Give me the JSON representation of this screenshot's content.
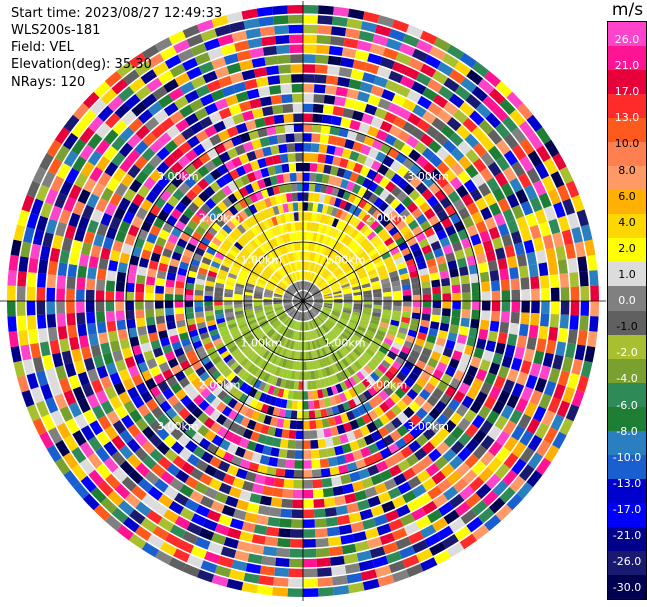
{
  "header": {
    "start_time": "Start time: 2023/08/27 12:49:33",
    "instrument": "WLS200s-181",
    "field": "Field: VEL",
    "elevation": "Elevation(deg): 35.30",
    "nrays": "NRays: 120"
  },
  "colorbar": {
    "unit": "m/s",
    "ticks": [
      "26.0",
      "21.0",
      "17.0",
      "13.0",
      "10.0",
      "8.0",
      "6.0",
      "4.0",
      "2.0",
      "1.0",
      "0.0",
      "-1.0",
      "-2.0",
      "-4.0",
      "-6.0",
      "-8.0",
      "-10.0",
      "-13.0",
      "-17.0",
      "-21.0",
      "-26.0",
      "-30.0"
    ],
    "colors": [
      "#ff44cc",
      "#ff1493",
      "#e8003a",
      "#ff2a2a",
      "#ff5a1e",
      "#ff7f50",
      "#ff9a66",
      "#ffb000",
      "#ffd700",
      "#ffff00",
      "#dcdcdc",
      "#808080",
      "#606060",
      "#a8c030",
      "#7aa030",
      "#2e8b57",
      "#1e7e34",
      "#2a7fc0",
      "#1a5fd0",
      "#0000cd",
      "#0000ff",
      "#00008b",
      "#191970",
      "#000050"
    ]
  },
  "chart_data": {
    "type": "heatmap",
    "title": "",
    "field": "VEL",
    "unit": "m/s",
    "nrays": 120,
    "elevation_deg": 35.3,
    "range_rings_km": [
      1.0,
      2.0,
      3.0
    ],
    "range_ring_labels": [
      "1.00km",
      "2.00km",
      "3.00km"
    ],
    "color_scale_ticks": [
      26.0,
      21.0,
      17.0,
      13.0,
      10.0,
      8.0,
      6.0,
      4.0,
      2.0,
      1.0,
      0.0,
      -1.0,
      -2.0,
      -4.0,
      -6.0,
      -8.0,
      -10.0,
      -13.0,
      -17.0,
      -21.0,
      -26.0,
      -30.0
    ],
    "pattern": "near-field: positive velocities (yellow, ~1-2 m/s) to the north, negative (olive/green, ~-2 to -4 m/s) to the south, near-zero (grey) in between; beyond ~1.3 km the field is noise spanning the full color scale"
  }
}
